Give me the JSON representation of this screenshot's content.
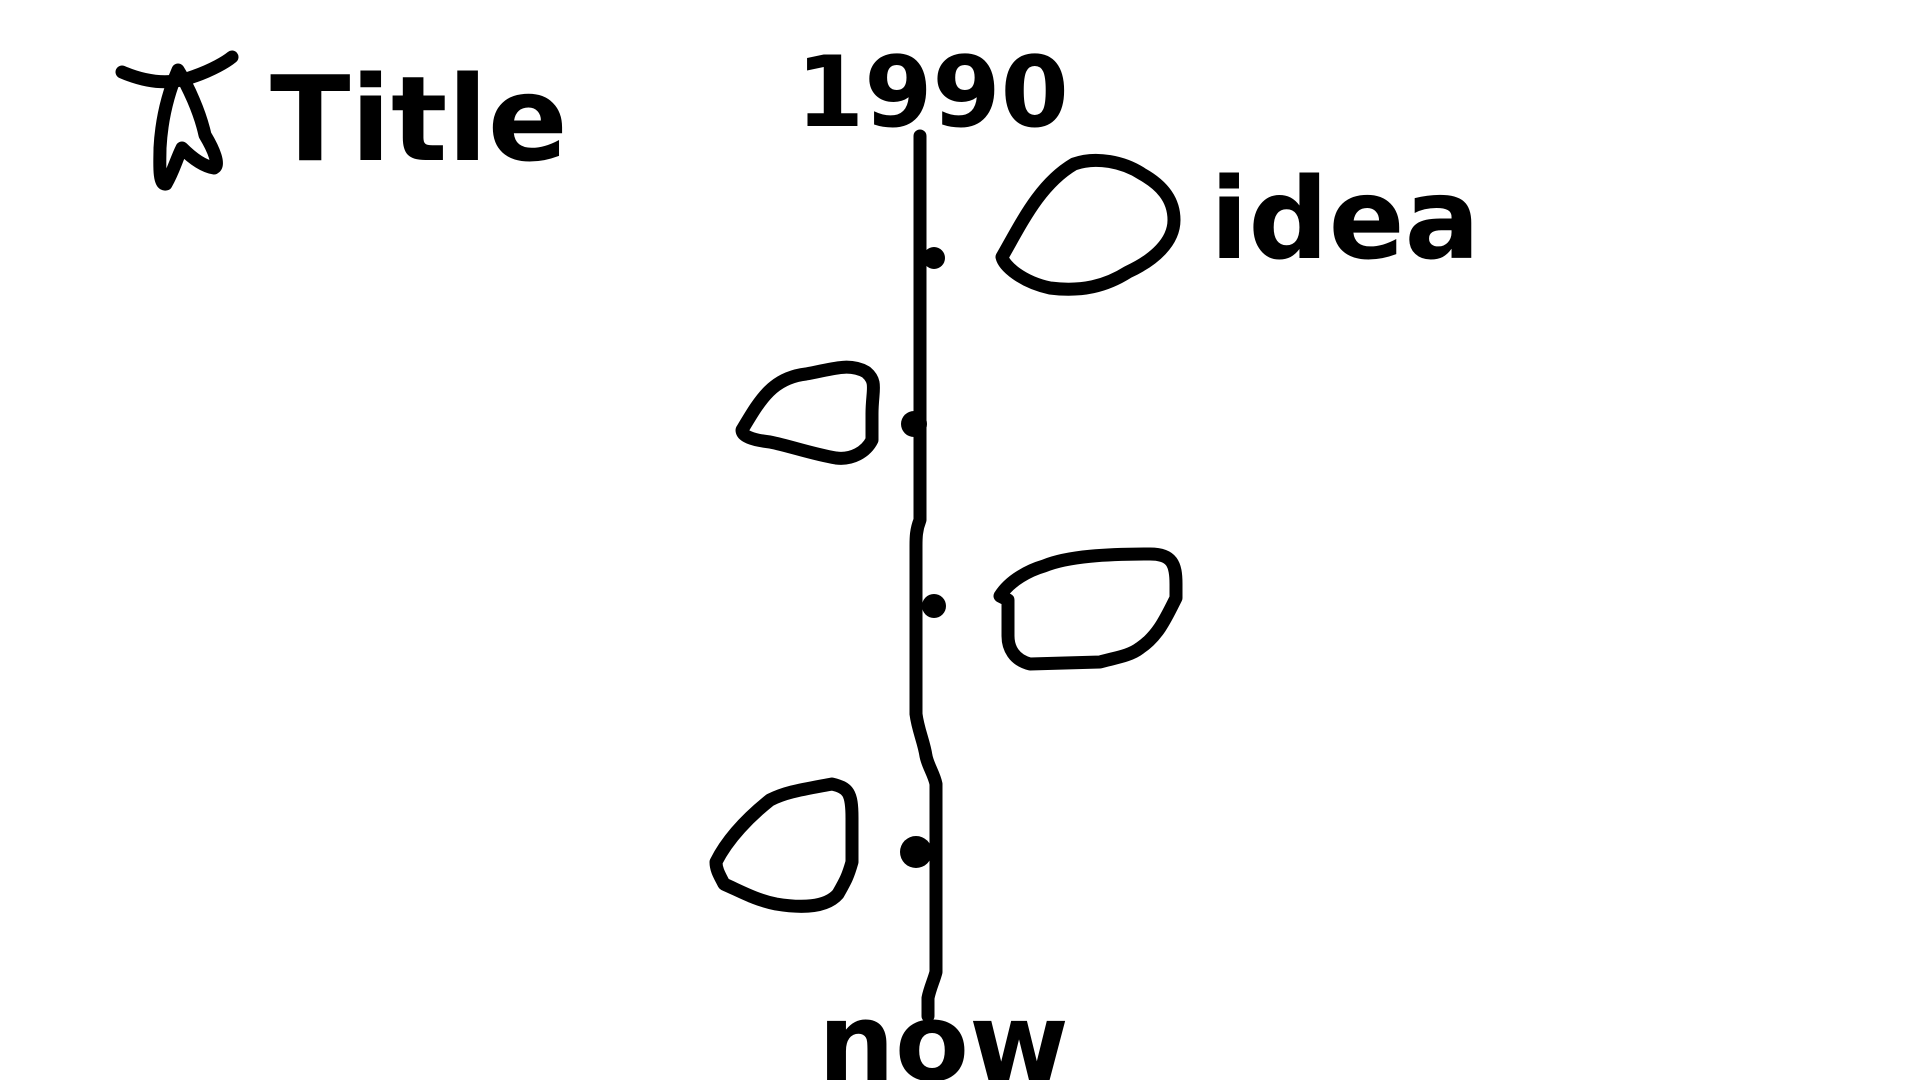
{
  "diagram": {
    "title": "Title",
    "title_marker": "star-icon",
    "timeline_start_label": "1990",
    "timeline_end_label": "now",
    "annotation": "idea",
    "bubbles": [
      {
        "side": "right",
        "shape": "rounded-bubble"
      },
      {
        "side": "left",
        "shape": "rounded-bubble"
      },
      {
        "side": "right",
        "shape": "rounded-bubble"
      },
      {
        "side": "left",
        "shape": "rounded-bubble"
      }
    ],
    "ink_color": "#000000",
    "background_color": "#ffffff"
  }
}
